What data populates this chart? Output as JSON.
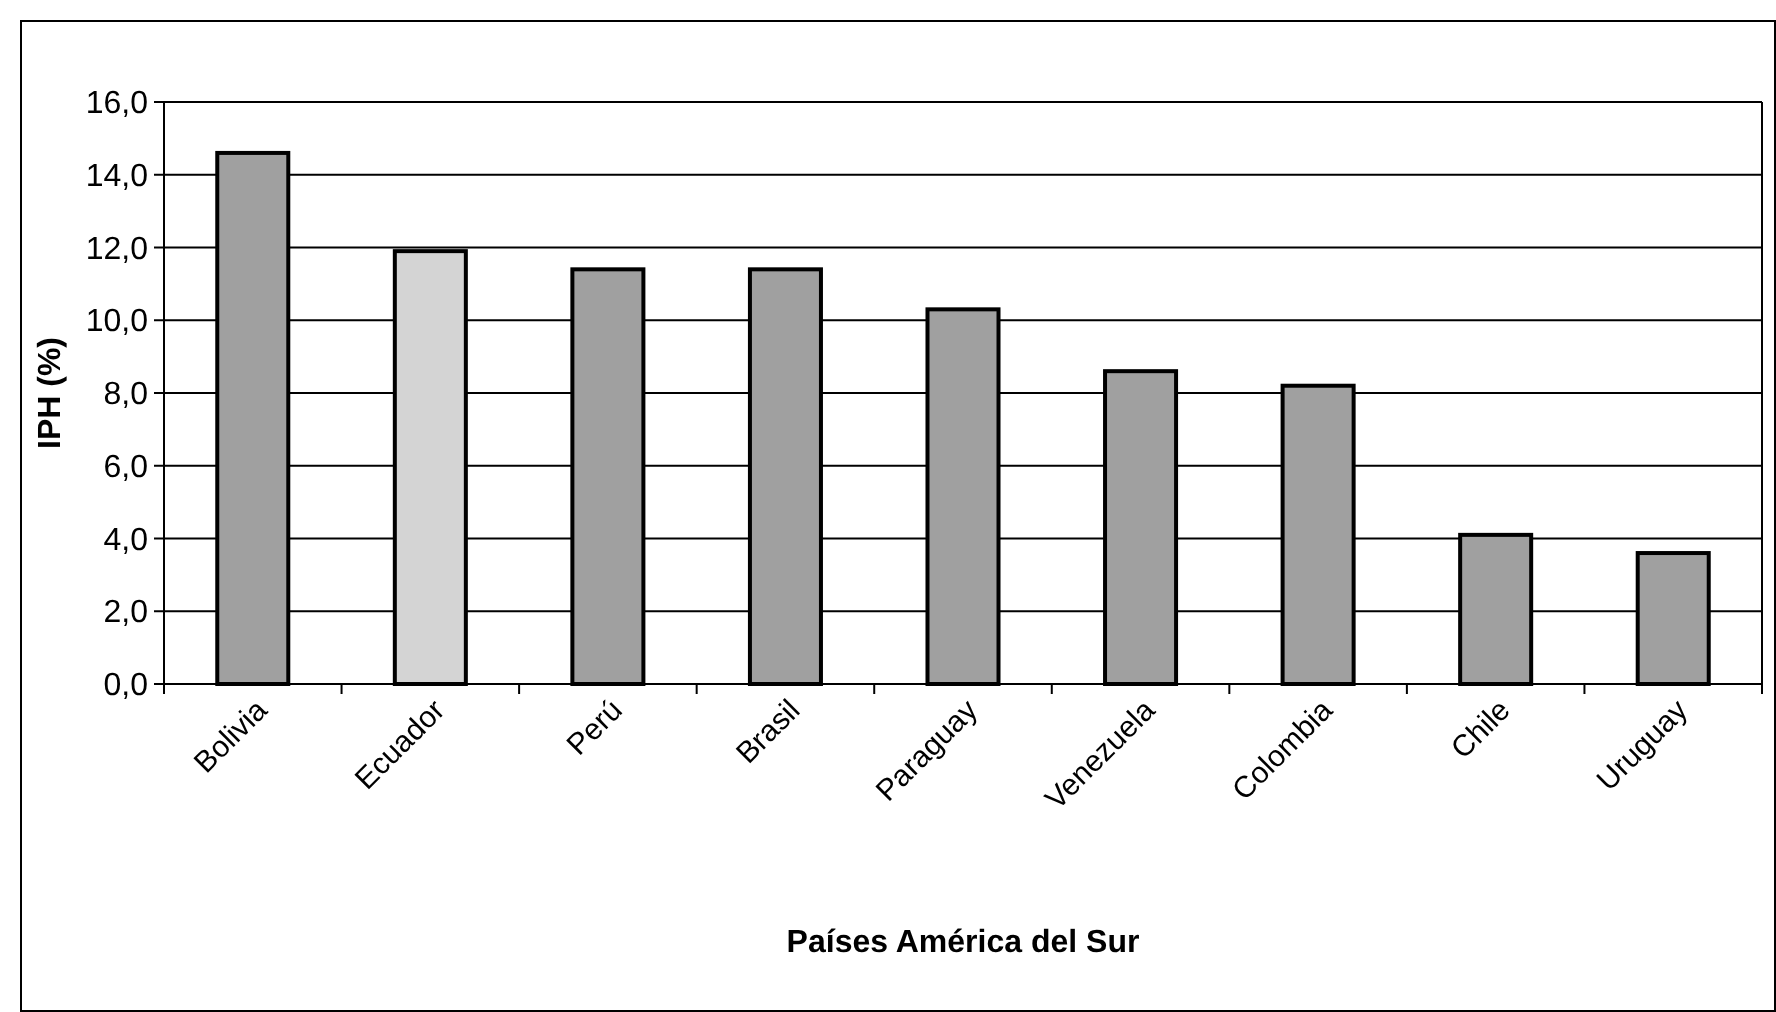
{
  "chart_data": {
    "type": "bar",
    "xlabel": "Países América del Sur",
    "ylabel": "IPH (%)",
    "categories": [
      "Bolivia",
      "Ecuador",
      "Perú",
      "Brasil",
      "Paraguay",
      "Venezuela",
      "Colombia",
      "Chile",
      "Uruguay"
    ],
    "values": [
      14.6,
      11.9,
      11.4,
      11.4,
      10.3,
      8.6,
      8.2,
      4.1,
      3.6
    ],
    "colors": [
      "#a0a0a0",
      "#d4d4d4",
      "#a0a0a0",
      "#a0a0a0",
      "#a0a0a0",
      "#a0a0a0",
      "#a0a0a0",
      "#a0a0a0",
      "#a0a0a0"
    ],
    "ylim": [
      0,
      16
    ],
    "yticks": [
      {
        "value": 0,
        "label": "0,0"
      },
      {
        "value": 2,
        "label": "2,0"
      },
      {
        "value": 4,
        "label": "4,0"
      },
      {
        "value": 6,
        "label": "6,0"
      },
      {
        "value": 8,
        "label": "8,0"
      },
      {
        "value": 10,
        "label": "10,0"
      },
      {
        "value": 12,
        "label": "12,0"
      },
      {
        "value": 14,
        "label": "14,0"
      },
      {
        "value": 16,
        "label": "16,0"
      }
    ],
    "grid": "y"
  }
}
